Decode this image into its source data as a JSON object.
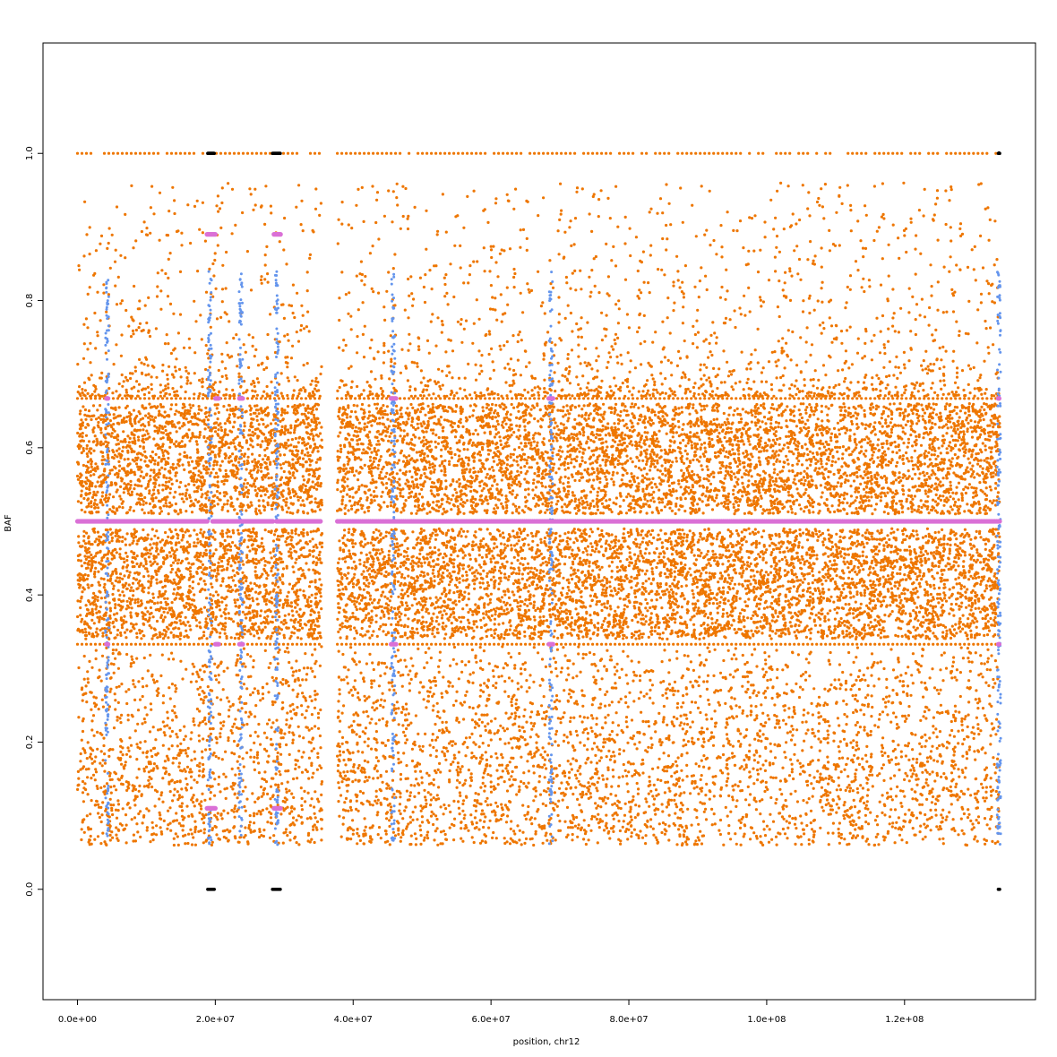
{
  "chart_data": {
    "type": "scatter",
    "title": "",
    "xlabel": "position, chr12",
    "ylabel": "BAF",
    "xlim": [
      -5000000,
      139000000
    ],
    "ylim": [
      -0.15,
      1.15
    ],
    "x_ticks": [
      0,
      20000000,
      40000000,
      60000000,
      80000000,
      100000000,
      120000000
    ],
    "x_tick_labels": [
      "0.0e+00",
      "2.0e+07",
      "4.0e+07",
      "6.0e+07",
      "8.0e+07",
      "1.0e+08",
      "1.2e+08"
    ],
    "y_ticks": [
      0.0,
      0.2,
      0.4,
      0.6,
      0.8,
      1.0
    ],
    "y_tick_labels": [
      "0.0",
      "0.2",
      "0.4",
      "0.6",
      "0.8",
      "1.0"
    ],
    "grid": false,
    "legend": "none",
    "colors": {
      "orange": "#EE7600",
      "blue": "#6495ED",
      "violet": "#DA70D6",
      "black": "#000000"
    },
    "data_range": [
      0,
      133800000
    ],
    "centromere_gap": [
      35500000,
      37700000
    ],
    "series": [
      {
        "color": "orange",
        "description_values": "dense heterozygous BAF cloud",
        "bands": [
          [
            0.06,
            0.33
          ],
          [
            0.34,
            0.49
          ],
          [
            0.51,
            0.66
          ],
          [
            0.67,
            0.96
          ]
        ],
        "line_levels": [
          0.333,
          0.667,
          1.0
        ]
      },
      {
        "color": "violet",
        "segment_levels": [
          {
            "y": 0.5,
            "x": [
              [
                0,
                18900000
              ],
              [
                19600000,
                28400000
              ],
              [
                28900000,
                35300000
              ],
              [
                37700000,
                133800000
              ]
            ]
          },
          {
            "y": 0.89,
            "x": [
              [
                18800000,
                20000000
              ],
              [
                28500000,
                29500000
              ]
            ]
          },
          {
            "y": 0.11,
            "x": [
              [
                18800000,
                20000000
              ],
              [
                28500000,
                29500000
              ]
            ]
          },
          {
            "y": 0.333,
            "x": [
              [
                4200000,
                4500000
              ],
              [
                20000000,
                20500000
              ],
              [
                23500000,
                24000000
              ],
              [
                45500000,
                46300000
              ],
              [
                68400000,
                69000000
              ],
              [
                133600000,
                133800000
              ]
            ]
          },
          {
            "y": 0.667,
            "x": [
              [
                4200000,
                4500000
              ],
              [
                20000000,
                20500000
              ],
              [
                23500000,
                24000000
              ],
              [
                45500000,
                46300000
              ],
              [
                68400000,
                69000000
              ],
              [
                133600000,
                133800000
              ]
            ]
          }
        ]
      },
      {
        "color": "blue",
        "vertical_streaks_x": [
          4300000,
          19200000,
          23700000,
          28900000,
          45800000,
          68700000,
          133700000
        ]
      },
      {
        "color": "black",
        "clusters": [
          {
            "y": 1.0,
            "x": [
              18900000,
              19900000
            ]
          },
          {
            "y": 1.0,
            "x": [
              28300000,
              29500000
            ]
          },
          {
            "y": 1.0,
            "x": [
              133600000,
              133800000
            ]
          },
          {
            "y": 0.0,
            "x": [
              18900000,
              19900000
            ]
          },
          {
            "y": 0.0,
            "x": [
              28300000,
              29500000
            ]
          },
          {
            "y": 0.0,
            "x": [
              133600000,
              133800000
            ]
          }
        ]
      }
    ]
  }
}
